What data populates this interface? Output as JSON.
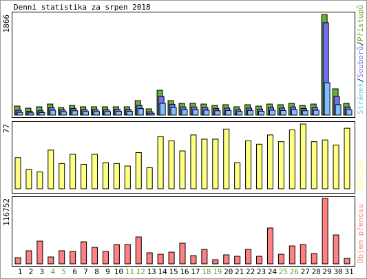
{
  "title": "Denní statistika za srpen 2018",
  "chart_data": [
    {
      "type": "bar",
      "ylim": [
        0,
        1866
      ],
      "yticks": [
        1866
      ],
      "legend_separator": "/",
      "series": [
        {
          "name": "Přístupů",
          "color": "#66b032",
          "values": [
            166,
            128,
            153,
            204,
            140,
            179,
            153,
            153,
            153,
            153,
            153,
            268,
            115,
            460,
            268,
            217,
            217,
            204,
            179,
            192,
            153,
            192,
            166,
            204,
            192,
            217,
            179,
            204,
            1866,
            486,
            217
          ]
        },
        {
          "name": "Souborů",
          "color": "#7070f0",
          "values": [
            90,
            70,
            80,
            140,
            95,
            120,
            100,
            100,
            100,
            105,
            105,
            180,
            60,
            345,
            200,
            150,
            150,
            140,
            120,
            130,
            100,
            130,
            110,
            140,
            130,
            150,
            120,
            140,
            1713,
            345,
            150
          ]
        },
        {
          "name": "Stránek",
          "color": "#80c0ff",
          "values": [
            50,
            40,
            45,
            90,
            60,
            80,
            65,
            65,
            65,
            70,
            70,
            120,
            30,
            217,
            140,
            100,
            100,
            90,
            80,
            85,
            65,
            85,
            70,
            90,
            85,
            100,
            80,
            90,
            600,
            192,
            100
          ]
        }
      ]
    },
    {
      "type": "bar",
      "ylim": [
        0,
        77
      ],
      "yticks": [
        77
      ],
      "series": [
        {
          "name": "Návštěv",
          "color": "#ffff80",
          "values": [
            37,
            23,
            20,
            46,
            30,
            41,
            29,
            41,
            31,
            30,
            27,
            43,
            25,
            62,
            57,
            45,
            64,
            59,
            59,
            71,
            31,
            57,
            53,
            64,
            56,
            70,
            77,
            56,
            58,
            52,
            72
          ]
        }
      ]
    },
    {
      "type": "bar",
      "ylim": [
        0,
        116752
      ],
      "yticks": [
        116752
      ],
      "categories": [
        "1",
        "2",
        "3",
        "4",
        "5",
        "6",
        "7",
        "8",
        "9",
        "10",
        "11",
        "12",
        "13",
        "14",
        "15",
        "16",
        "17",
        "18",
        "19",
        "20",
        "21",
        "22",
        "23",
        "24",
        "25",
        "26",
        "27",
        "28",
        "29",
        "30",
        "31"
      ],
      "category_colors": [
        "#000000",
        "#000000",
        "#000000",
        "#55aa22",
        "#55aa22",
        "#000000",
        "#000000",
        "#000000",
        "#000000",
        "#000000",
        "#55aa22",
        "#55aa22",
        "#000000",
        "#000000",
        "#000000",
        "#000000",
        "#000000",
        "#55aa22",
        "#55aa22",
        "#000000",
        "#000000",
        "#000000",
        "#000000",
        "#000000",
        "#55aa22",
        "#55aa22",
        "#000000",
        "#000000",
        "#000000",
        "#000000",
        "#000000"
      ],
      "series": [
        {
          "name": "Objem přenosu",
          "color": "#ff8080",
          "values": [
            11061,
            23351,
            40557,
            12290,
            23351,
            22122,
            39328,
            29496,
            22122,
            34412,
            34412,
            47931,
            19664,
            17206,
            20893,
            36870,
            14748,
            25809,
            7374,
            15977,
            13519,
            25809,
            13519,
            63908,
            17206,
            31954,
            34412,
            18435,
            116752,
            51618,
            9832
          ]
        }
      ]
    }
  ]
}
